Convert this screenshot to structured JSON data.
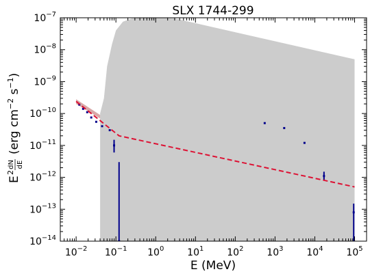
{
  "chart_data": {
    "type": "line",
    "title": "SLX 1744-299",
    "xlabel": "E (MeV)",
    "ylabel_parts": {
      "e": "E",
      "sq": "2",
      "num": "dN",
      "den": "dE",
      "unit_open": "(erg cm",
      "exp1": "−2",
      "mid": " s",
      "exp2": "−1",
      "unit_close": ")"
    },
    "xscale": "log",
    "yscale": "log",
    "xlim": [
      0.004,
      200000
    ],
    "ylim": [
      1e-14,
      1e-07
    ],
    "x_major_ticks": [
      {
        "value": 0.01,
        "base": "10",
        "exp": "−2"
      },
      {
        "value": 0.1,
        "base": "10",
        "exp": "−1"
      },
      {
        "value": 1,
        "base": "10",
        "exp": "0"
      },
      {
        "value": 10,
        "base": "10",
        "exp": "1"
      },
      {
        "value": 100,
        "base": "10",
        "exp": "2"
      },
      {
        "value": 1000,
        "base": "10",
        "exp": "3"
      },
      {
        "value": 10000,
        "base": "10",
        "exp": "4"
      },
      {
        "value": 100000,
        "base": "10",
        "exp": "5"
      }
    ],
    "y_major_ticks": [
      {
        "value": 1e-14,
        "base": "10",
        "exp": "−14"
      },
      {
        "value": 1e-13,
        "base": "10",
        "exp": "−13"
      },
      {
        "value": 1e-12,
        "base": "10",
        "exp": "−12"
      },
      {
        "value": 1e-11,
        "base": "10",
        "exp": "−11"
      },
      {
        "value": 1e-10,
        "base": "10",
        "exp": "−10"
      },
      {
        "value": 1e-09,
        "base": "10",
        "exp": "−9"
      },
      {
        "value": 1e-08,
        "base": "10",
        "exp": "−8"
      },
      {
        "value": 1e-07,
        "base": "10",
        "exp": "−7"
      }
    ],
    "model_band": {
      "color": "#cccccc",
      "upper": [
        [
          0.04,
          1e-10
        ],
        [
          0.05,
          3e-10
        ],
        [
          0.06,
          3e-09
        ],
        [
          0.08,
          1.5e-08
        ],
        [
          0.1,
          4e-08
        ],
        [
          0.15,
          7.5e-08
        ],
        [
          0.25,
          9.5e-08
        ],
        [
          0.5,
          1e-07
        ],
        [
          1,
          1e-07
        ],
        [
          3,
          9.5e-08
        ],
        [
          100000,
          5e-09
        ]
      ],
      "lower": [
        [
          0.04,
          1e-14
        ],
        [
          100000,
          1e-14
        ]
      ]
    },
    "low_band": {
      "color": "#d9a8a8",
      "upper": [
        [
          0.01,
          2.8e-10
        ],
        [
          0.04,
          9e-11
        ]
      ],
      "lower": [
        [
          0.01,
          2e-10
        ],
        [
          0.04,
          7e-11
        ]
      ]
    },
    "fit_line": {
      "color": "#dd1133",
      "style": "dashed",
      "points": [
        [
          0.01,
          2.4e-10
        ],
        [
          0.12,
          2e-11
        ],
        [
          100000,
          5e-13
        ]
      ]
    },
    "data_points": {
      "color": "#00008b",
      "points": [
        {
          "x": 0.012,
          "y": 1.9e-10
        },
        {
          "x": 0.015,
          "y": 1.4e-10
        },
        {
          "x": 0.019,
          "y": 1.1e-10
        },
        {
          "x": 0.024,
          "y": 7.5e-11
        },
        {
          "x": 0.032,
          "y": 5.5e-11
        },
        {
          "x": 0.045,
          "y": 4e-11
        },
        {
          "x": 0.07,
          "y": 3e-11
        },
        {
          "x": 0.09,
          "y": 1e-11,
          "ylo": 6e-12,
          "yhi": 1.5e-11
        },
        {
          "x": 0.12,
          "y": 1e-14,
          "ylo": 1e-14,
          "yhi": 3e-12
        },
        {
          "x": 550,
          "y": 5e-11
        },
        {
          "x": 1700,
          "y": 3.5e-11
        },
        {
          "x": 5500,
          "y": 1.2e-11
        },
        {
          "x": 17000,
          "y": 1.1e-12,
          "ylo": 8e-13,
          "yhi": 1.5e-12
        },
        {
          "x": 95000,
          "y": 8e-14,
          "ylo": 1e-14,
          "yhi": 1.5e-13
        }
      ]
    }
  }
}
